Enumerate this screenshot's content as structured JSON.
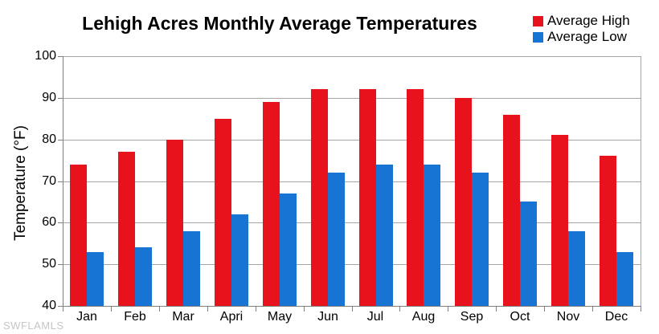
{
  "header": {
    "title": "Lehigh Acres Monthly Average Temperatures"
  },
  "legend": {
    "items": [
      {
        "label": "Average High",
        "color": "#e8121d"
      },
      {
        "label": "Average Low",
        "color": "#1874d4"
      }
    ]
  },
  "y_axis": {
    "title": "Temperature (°F)"
  },
  "watermark": "SWFLAMLS",
  "chart_data": {
    "type": "bar",
    "title": "Lehigh Acres Monthly Average Temperatures",
    "categories": [
      "Jan",
      "Feb",
      "Mar",
      "Apri",
      "May",
      "Jun",
      "Jul",
      "Aug",
      "Sep",
      "Oct",
      "Nov",
      "Dec"
    ],
    "series": [
      {
        "name": "Average High",
        "color": "#e8121d",
        "values": [
          74,
          77,
          80,
          85,
          89,
          92,
          92,
          92,
          90,
          86,
          81,
          76
        ]
      },
      {
        "name": "Average Low",
        "color": "#1874d4",
        "values": [
          53,
          54,
          58,
          62,
          67,
          72,
          74,
          74,
          72,
          65,
          58,
          53
        ]
      }
    ],
    "xlabel": "",
    "ylabel": "Temperature (°F)",
    "ylim": [
      40,
      100
    ],
    "yticks": [
      40,
      50,
      60,
      70,
      80,
      90,
      100
    ],
    "grid": true,
    "legend_position": "top-right"
  }
}
